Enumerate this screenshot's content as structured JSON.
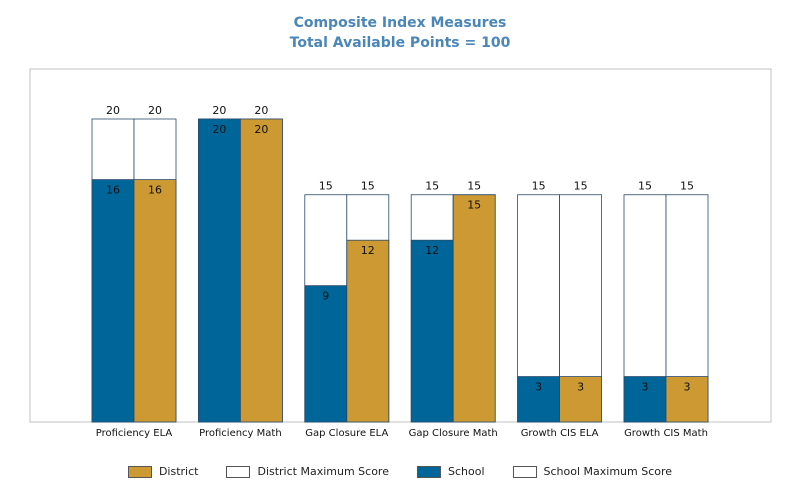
{
  "chart_data": {
    "type": "bar",
    "title": "Composite Index Measures",
    "subtitle": "Total Available Points = 100",
    "categories": [
      "Proficiency ELA",
      "Proficiency Math",
      "Gap Closure ELA",
      "Gap Closure Math",
      "Growth CIS ELA",
      "Growth CIS Math"
    ],
    "series": [
      {
        "name": "School",
        "values": [
          16,
          20,
          9,
          12,
          3,
          3
        ],
        "max_values": [
          20,
          20,
          15,
          15,
          15,
          15
        ],
        "color": "#006699"
      },
      {
        "name": "District",
        "values": [
          16,
          20,
          12,
          15,
          3,
          3
        ],
        "max_values": [
          20,
          20,
          15,
          15,
          15,
          15
        ],
        "color": "#cc9933"
      }
    ],
    "ylim": [
      0,
      23.3
    ],
    "grid": false,
    "legend_position": "bottom",
    "legend": [
      {
        "label": "District",
        "color": "#cc9933"
      },
      {
        "label": "District Maximum Score",
        "color": "#ffffff"
      },
      {
        "label": "School",
        "color": "#006699"
      },
      {
        "label": "School Maximum Score",
        "color": "#ffffff"
      }
    ]
  }
}
